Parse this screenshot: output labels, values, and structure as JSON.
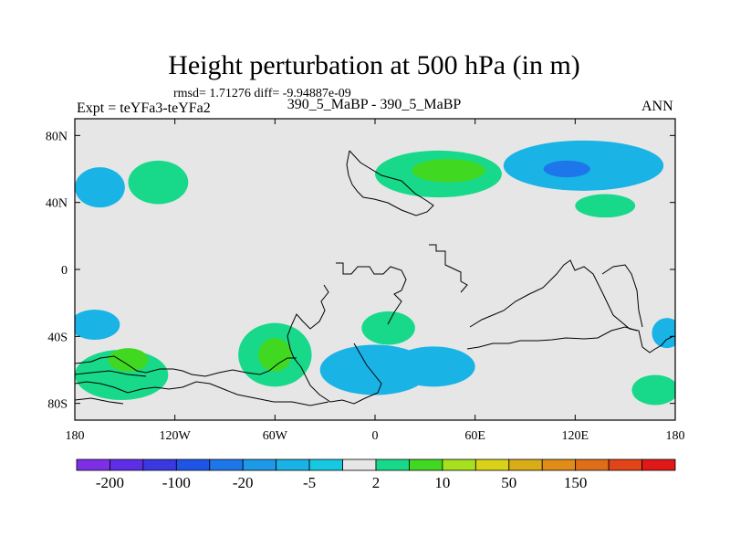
{
  "chart_data": {
    "type": "contour map",
    "title": "Height perturbation at 500 hPa (in m)",
    "stats": "rmsd= 1.71276 diff= -9.94887e-09",
    "experiment_label": "Expt = teYFa3-teYFa2",
    "case_label": "390_5_MaBP - 390_5_MaBP",
    "season": "ANN",
    "x_range": [
      -180,
      180
    ],
    "y_range": [
      -90,
      90
    ],
    "x_ticks": [
      {
        "value": -180,
        "label": "180"
      },
      {
        "value": -120,
        "label": "120W"
      },
      {
        "value": -60,
        "label": "60W"
      },
      {
        "value": 0,
        "label": "0"
      },
      {
        "value": 60,
        "label": "60E"
      },
      {
        "value": 120,
        "label": "120E"
      },
      {
        "value": 180,
        "label": "180"
      }
    ],
    "y_ticks": [
      {
        "value": 80,
        "label": "80N"
      },
      {
        "value": 40,
        "label": "40N"
      },
      {
        "value": 0,
        "label": "0"
      },
      {
        "value": -40,
        "label": "40S"
      },
      {
        "value": -80,
        "label": "80S"
      }
    ],
    "colorbar": {
      "colors": [
        "#7d2ee6",
        "#5e2ee6",
        "#3a38e0",
        "#1e55e6",
        "#1d77ea",
        "#1e99e8",
        "#19b3e6",
        "#17c9e0",
        "#e6e6e6",
        "#18d98a",
        "#41d822",
        "#a6e01e",
        "#d9d218",
        "#d9ac18",
        "#e08c18",
        "#e06e18",
        "#e04418",
        "#e01818"
      ],
      "labels": [
        {
          "boundary": 1,
          "text": "-200"
        },
        {
          "boundary": 3,
          "text": "-100"
        },
        {
          "boundary": 5,
          "text": "-20"
        },
        {
          "boundary": 7,
          "text": "-5"
        },
        {
          "boundary": 9,
          "text": "2"
        },
        {
          "boundary": 11,
          "text": "10"
        },
        {
          "boundary": 13,
          "text": "50"
        },
        {
          "boundary": 15,
          "text": "150"
        }
      ]
    },
    "anomaly_regions": [
      {
        "level": "-5",
        "lon": -165,
        "lat": 49,
        "rx": 15,
        "ry": 12
      },
      {
        "level": "2",
        "lon": -130,
        "lat": 52,
        "rx": 18,
        "ry": 13
      },
      {
        "level": "2",
        "lon": 38,
        "lat": 57,
        "rx": 38,
        "ry": 14
      },
      {
        "level": "10",
        "lon": 44,
        "lat": 59,
        "rx": 22,
        "ry": 7
      },
      {
        "level": "-5",
        "lon": 125,
        "lat": 62,
        "rx": 48,
        "ry": 15
      },
      {
        "level": "-20",
        "lon": 115,
        "lat": 60,
        "rx": 14,
        "ry": 5
      },
      {
        "level": "2",
        "lon": 138,
        "lat": 38,
        "rx": 18,
        "ry": 7
      },
      {
        "level": "-5",
        "lon": -168,
        "lat": -33,
        "rx": 15,
        "ry": 9
      },
      {
        "level": "2",
        "lon": -152,
        "lat": -63,
        "rx": 28,
        "ry": 15
      },
      {
        "level": "10",
        "lon": -148,
        "lat": -54,
        "rx": 12,
        "ry": 7
      },
      {
        "level": "2",
        "lon": -60,
        "lat": -51,
        "rx": 22,
        "ry": 19
      },
      {
        "level": "10",
        "lon": -60,
        "lat": -51,
        "rx": 10,
        "ry": 10
      },
      {
        "level": "2",
        "lon": 8,
        "lat": -35,
        "rx": 16,
        "ry": 10
      },
      {
        "level": "-5",
        "lon": 0,
        "lat": -60,
        "rx": 33,
        "ry": 15
      },
      {
        "level": "-5",
        "lon": 35,
        "lat": -58,
        "rx": 25,
        "ry": 12
      },
      {
        "level": "2",
        "lon": 168,
        "lat": -72,
        "rx": 14,
        "ry": 9
      },
      {
        "level": "-5",
        "lon": 175,
        "lat": -38,
        "rx": 9,
        "ry": 9
      }
    ]
  }
}
